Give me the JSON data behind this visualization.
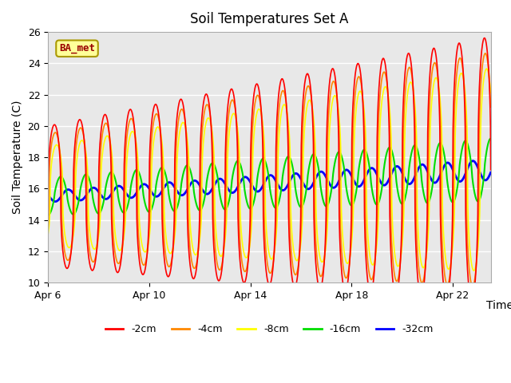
{
  "title": "Soil Temperatures Set A",
  "xlabel": "Time",
  "ylabel": "Soil Temperature (C)",
  "ylim": [
    10,
    26
  ],
  "xlim_days": [
    0,
    17.5
  ],
  "x_ticks_days": [
    0,
    4,
    8,
    12,
    16
  ],
  "x_tick_labels": [
    "Apr 6",
    "Apr 10",
    "Apr 14",
    "Apr 18",
    "Apr 22"
  ],
  "legend_labels": [
    "-2cm",
    "-4cm",
    "-8cm",
    "-16cm",
    "-32cm"
  ],
  "line_colors": [
    "#ff0000",
    "#ff8800",
    "#ffff00",
    "#00dd00",
    "#0000ff"
  ],
  "line_widths": [
    1.2,
    1.2,
    1.2,
    1.5,
    2.0
  ],
  "background_color": "#e8e8e8",
  "label_box": "BA_met",
  "label_box_color": "#ffff99",
  "label_box_text_color": "#990000",
  "dt_hours": 0.25,
  "total_hours": 420,
  "base_temp_start": 15.5,
  "base_temp_end": 17.2,
  "amp_2cm_start": 4.5,
  "amp_2cm_end": 8.5,
  "amp_4cm_start": 4.0,
  "amp_4cm_end": 7.5,
  "amp_8cm_start": 3.2,
  "amp_8cm_end": 6.5,
  "amp_16cm_start": 1.2,
  "amp_16cm_end": 2.0,
  "amp_32cm_start": 0.35,
  "amp_32cm_end": 0.65,
  "phase_lags_hours": [
    0,
    0.8,
    2.0,
    6,
    13
  ],
  "peak_sharpness": 2.5,
  "grid_color": "#cccccc",
  "grid_alpha": 0.6
}
